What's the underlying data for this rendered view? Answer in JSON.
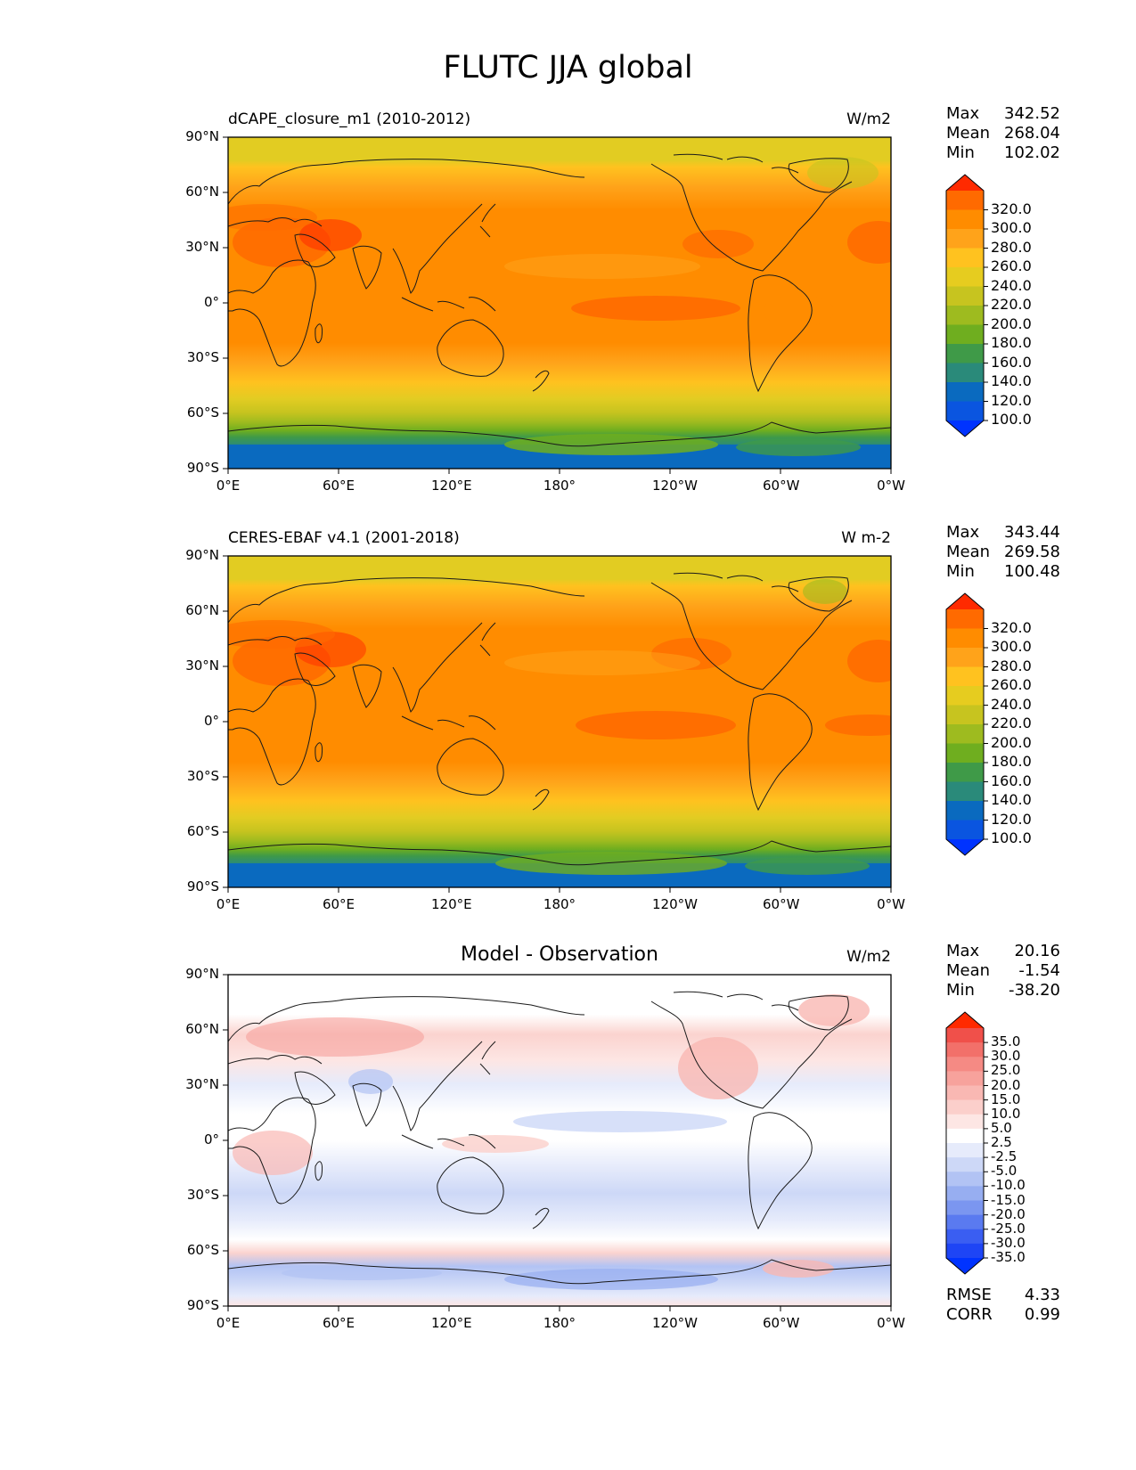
{
  "figure": {
    "title": "FLUTC JJA global"
  },
  "axes": {
    "lat_ticks": [
      "90°N",
      "60°N",
      "30°N",
      "0°",
      "30°S",
      "60°S",
      "90°S"
    ],
    "lon_ticks": [
      "0°E",
      "60°E",
      "120°E",
      "180°",
      "120°W",
      "60°W",
      "0°W"
    ]
  },
  "panels": [
    {
      "name": "model",
      "left_title": "dCAPE_closure_m1 (2010-2012)",
      "center_title": "",
      "units": "W/m2",
      "stats": {
        "max_label": "Max",
        "max": "342.52",
        "mean_label": "Mean",
        "mean": "268.04",
        "min_label": "Min",
        "min": "102.02"
      },
      "colorbar": {
        "labels": [
          "320.0",
          "300.0",
          "280.0",
          "260.0",
          "240.0",
          "220.0",
          "200.0",
          "180.0",
          "160.0",
          "140.0",
          "120.0",
          "100.0"
        ],
        "colors": [
          "#ff2a00",
          "#ff6a00",
          "#ff8c00",
          "#ffa31a",
          "#ffc21f",
          "#e6cc1f",
          "#c7c41f",
          "#9ebb1f",
          "#6fae1f",
          "#3f9a48",
          "#2a8a7a",
          "#0a6abf",
          "#0a55e0",
          "#0033ff"
        ]
      }
    },
    {
      "name": "observation",
      "left_title": "CERES-EBAF v4.1 (2001-2018)",
      "center_title": "",
      "units": "W m-2",
      "stats": {
        "max_label": "Max",
        "max": "343.44",
        "mean_label": "Mean",
        "mean": "269.58",
        "min_label": "Min",
        "min": "100.48"
      },
      "colorbar": {
        "labels": [
          "320.0",
          "300.0",
          "280.0",
          "260.0",
          "240.0",
          "220.0",
          "200.0",
          "180.0",
          "160.0",
          "140.0",
          "120.0",
          "100.0"
        ],
        "colors": [
          "#ff2a00",
          "#ff6a00",
          "#ff8c00",
          "#ffa31a",
          "#ffc21f",
          "#e6cc1f",
          "#c7c41f",
          "#9ebb1f",
          "#6fae1f",
          "#3f9a48",
          "#2a8a7a",
          "#0a6abf",
          "#0a55e0",
          "#0033ff"
        ]
      }
    },
    {
      "name": "difference",
      "left_title": "",
      "center_title": "Model - Observation",
      "units": "W/m2",
      "stats": {
        "max_label": "Max",
        "max": "20.16",
        "mean_label": "Mean",
        "mean": "-1.54",
        "min_label": "Min",
        "min": "-38.20"
      },
      "colorbar": {
        "labels": [
          "35.0",
          "30.0",
          "25.0",
          "20.0",
          "15.0",
          "10.0",
          "5.0",
          "2.5",
          "-2.5",
          "-5.0",
          "-10.0",
          "-15.0",
          "-20.0",
          "-25.0",
          "-30.0",
          "-35.0"
        ],
        "colors": [
          "#ff2a00",
          "#f0504a",
          "#f2706a",
          "#f58a84",
          "#f7a29c",
          "#f9b8b3",
          "#fbcfcb",
          "#fde6e4",
          "#ffffff",
          "#e6ebfb",
          "#cdd8f7",
          "#b2c3f4",
          "#97aef1",
          "#7b96f0",
          "#5a7af0",
          "#3a5ef2",
          "#1e45f5",
          "#0033ff"
        ]
      },
      "extra_stats": {
        "rmse_label": "RMSE",
        "rmse": "4.33",
        "corr_label": "CORR",
        "corr": "0.99"
      }
    }
  ]
}
